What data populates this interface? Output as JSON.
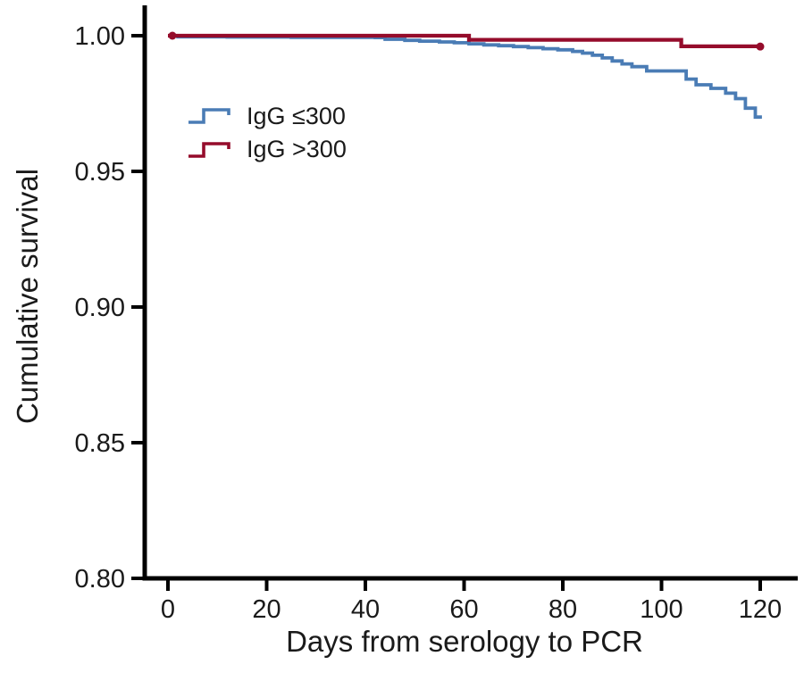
{
  "figure": {
    "background": "#ffffff",
    "text_color": "#1a1a1a",
    "axis_color": "#000000"
  },
  "chart_data": {
    "type": "line",
    "subtype": "kaplan_meier_step",
    "title": "",
    "xlabel": "Days from serology to PCR",
    "ylabel": "Cumulative survival",
    "xlim": [
      0,
      127
    ],
    "ylim": [
      0.8,
      1.0
    ],
    "xticks": [
      0,
      20,
      40,
      60,
      80,
      100,
      120
    ],
    "yticks": [
      1.0,
      0.95,
      0.9,
      0.85,
      0.8
    ],
    "ytick_labels": [
      "1.00",
      "0.95",
      "0.90",
      "0.85",
      "0.80"
    ],
    "grid": false,
    "legend": {
      "position": "upper-left-inside",
      "entries": [
        {
          "label": "IgG ≤300",
          "color": "#4a7cb5"
        },
        {
          "label": "IgG >300",
          "color": "#950c2b"
        }
      ]
    },
    "series": [
      {
        "name": "IgG ≤300",
        "color": "#4a7cb5",
        "stroke_width": 3.8,
        "start_marker": false,
        "end_marker": false,
        "points": [
          [
            0,
            1.0
          ],
          [
            2,
            0.9996
          ],
          [
            12,
            0.9995
          ],
          [
            25,
            0.9994
          ],
          [
            42,
            0.9993
          ],
          [
            44,
            0.9987
          ],
          [
            48,
            0.9983
          ],
          [
            51,
            0.998
          ],
          [
            55,
            0.9977
          ],
          [
            58,
            0.9974
          ],
          [
            61,
            0.997
          ],
          [
            64,
            0.9966
          ],
          [
            67,
            0.9963
          ],
          [
            70,
            0.996
          ],
          [
            73,
            0.9956
          ],
          [
            76,
            0.9952
          ],
          [
            79,
            0.9948
          ],
          [
            82,
            0.9942
          ],
          [
            84,
            0.9936
          ],
          [
            86,
            0.9928
          ],
          [
            88,
            0.9918
          ],
          [
            90,
            0.9907
          ],
          [
            92,
            0.9896
          ],
          [
            94,
            0.9886
          ],
          [
            97,
            0.987
          ],
          [
            105,
            0.984
          ],
          [
            107,
            0.9819
          ],
          [
            110,
            0.9806
          ],
          [
            113,
            0.9788
          ],
          [
            115,
            0.9768
          ],
          [
            117,
            0.9733
          ],
          [
            119,
            0.97
          ],
          [
            120,
            0.9694
          ]
        ]
      },
      {
        "name": "IgG >300",
        "color": "#950c2b",
        "stroke_width": 4.3,
        "start_marker": true,
        "end_marker": true,
        "points": [
          [
            0,
            1.0
          ],
          [
            60,
            1.0
          ],
          [
            61,
            0.9985
          ],
          [
            104,
            0.9985
          ],
          [
            104,
            0.9961
          ],
          [
            120,
            0.996
          ]
        ]
      }
    ]
  }
}
